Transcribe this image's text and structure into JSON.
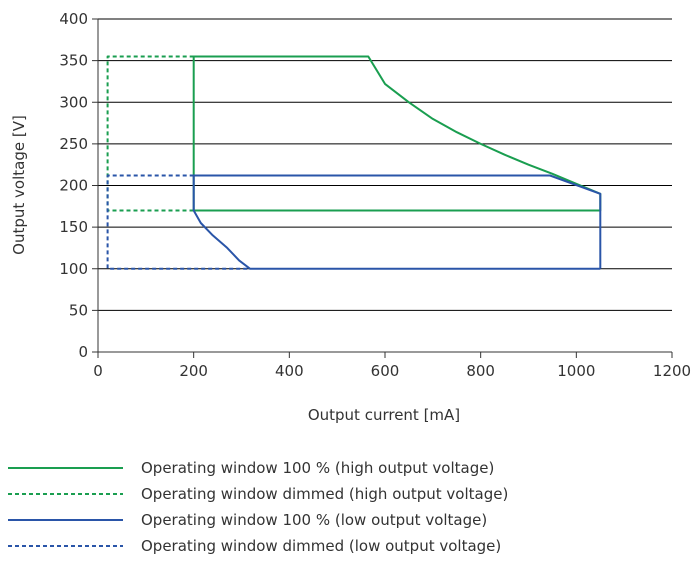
{
  "chart_data": {
    "type": "line",
    "xlabel": "Output current [mA]",
    "ylabel": "Output voltage [V]",
    "xlim": [
      0,
      1200
    ],
    "ylim": [
      0,
      400
    ],
    "xticks": [
      "0",
      "200",
      "400",
      "600",
      "800",
      "1000",
      "1200"
    ],
    "yticks": [
      "0",
      "50",
      "100",
      "150",
      "200",
      "250",
      "300",
      "350",
      "400"
    ],
    "grid": "horizontal",
    "legend_position": "bottom",
    "series": [
      {
        "name": "Operating window 100 % (high output voltage)",
        "color": "#1a9e50",
        "dash": "solid",
        "x": [
          200,
          200,
          565,
          600,
          650,
          700,
          750,
          800,
          850,
          900,
          950,
          1000,
          1050,
          1050,
          200
        ],
        "y": [
          170,
          355,
          355,
          322,
          300,
          280,
          264,
          250,
          237,
          225,
          214,
          202,
          190,
          170,
          170
        ]
      },
      {
        "name": "Operating window dimmed (high output voltage)",
        "color": "#1a9e50",
        "dash": "dashed",
        "x": [
          200,
          20,
          20,
          200
        ],
        "y": [
          355,
          355,
          170,
          170
        ]
      },
      {
        "name": "Operating window 100 % (low output voltage)",
        "color": "#2a55a8",
        "dash": "solid",
        "x": [
          1050,
          1050,
          945,
          200,
          200,
          215,
          240,
          270,
          295,
          318,
          1050
        ],
        "y": [
          100,
          190,
          212,
          212,
          170,
          155,
          140,
          125,
          110,
          100,
          100
        ]
      },
      {
        "name": "Operating window dimmed (low output voltage)",
        "color": "#2a55a8",
        "dash": "dashed",
        "x": [
          200,
          20,
          20,
          318
        ],
        "y": [
          212,
          212,
          100,
          100
        ]
      }
    ]
  }
}
